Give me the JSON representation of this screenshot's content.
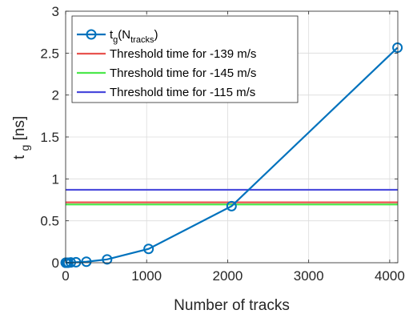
{
  "chart_data": {
    "type": "line",
    "title": "",
    "xlabel": "Number of tracks",
    "ylabel_main": "t",
    "ylabel_sub": "g",
    "ylabel_unit": "[ns]",
    "xlim": [
      0,
      4100
    ],
    "ylim": [
      0,
      3
    ],
    "xticks": [
      0,
      1000,
      2000,
      3000,
      4000
    ],
    "xtick_labels": [
      "0",
      "1000",
      "2000",
      "3000",
      "4000"
    ],
    "yticks": [
      0,
      0.5,
      1,
      1.5,
      2,
      2.5,
      3
    ],
    "ytick_labels": [
      "0",
      "0.5",
      "1",
      "1.5",
      "2",
      "2.5",
      "3"
    ],
    "grid": true,
    "legend_position": "top-left",
    "series": [
      {
        "name_main": "t",
        "name_sub1": "g",
        "name_mid": "(N",
        "name_sub2": "tracks",
        "name_end": ")",
        "kind": "line-marker",
        "color": "#0072BD",
        "x": [
          1,
          2,
          4,
          8,
          16,
          32,
          64,
          128,
          256,
          512,
          1024,
          2048,
          4096
        ],
        "y": [
          0.0,
          0.0,
          0.0,
          0.0,
          0.0,
          0.0,
          0.003,
          0.006,
          0.012,
          0.04,
          0.165,
          0.675,
          2.565
        ]
      },
      {
        "name": "Threshold time for -139 m/s",
        "kind": "hline",
        "color": "#E8534F",
        "y": 0.72
      },
      {
        "name": "Threshold time for -145 m/s",
        "kind": "hline",
        "color": "#4CE84C",
        "y": 0.695
      },
      {
        "name": "Threshold time for -115 m/s",
        "kind": "hline",
        "color": "#4A4ADC",
        "y": 0.87
      }
    ]
  }
}
